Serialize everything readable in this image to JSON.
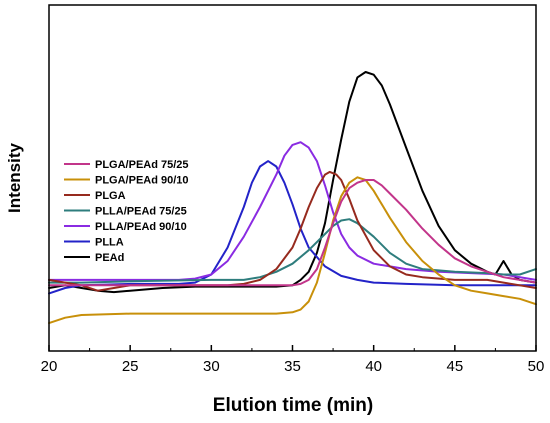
{
  "chart_data": {
    "type": "line",
    "xlabel": "Elution time (min)",
    "ylabel": "Intensity",
    "xlim": [
      20,
      50
    ],
    "ylim": [
      0,
      1
    ],
    "x_ticks": [
      "20",
      "25",
      "30",
      "35",
      "40",
      "45",
      "50"
    ],
    "grid": false,
    "legend_position": "left-center",
    "series": [
      {
        "name": "PLGA/PEAd 75/25",
        "color": "#c2358a",
        "points": [
          [
            20,
            0.11
          ],
          [
            25,
            0.11
          ],
          [
            28,
            0.11
          ],
          [
            30,
            0.11
          ],
          [
            32,
            0.11
          ],
          [
            34,
            0.11
          ],
          [
            35,
            0.11
          ],
          [
            35.5,
            0.115
          ],
          [
            36,
            0.13
          ],
          [
            36.5,
            0.17
          ],
          [
            37,
            0.25
          ],
          [
            37.5,
            0.34
          ],
          [
            38,
            0.42
          ],
          [
            38.5,
            0.47
          ],
          [
            39,
            0.49
          ],
          [
            39.5,
            0.5
          ],
          [
            40,
            0.5
          ],
          [
            40.5,
            0.48
          ],
          [
            41,
            0.45
          ],
          [
            42,
            0.39
          ],
          [
            43,
            0.32
          ],
          [
            44,
            0.26
          ],
          [
            45,
            0.21
          ],
          [
            46,
            0.18
          ],
          [
            47,
            0.16
          ],
          [
            48,
            0.14
          ],
          [
            49,
            0.13
          ],
          [
            50,
            0.12
          ]
        ]
      },
      {
        "name": "PLGA/PEAd 90/10",
        "color": "#c8900a",
        "points": [
          [
            20,
            -0.03
          ],
          [
            21,
            -0.01
          ],
          [
            22,
            0
          ],
          [
            25,
            0.005
          ],
          [
            30,
            0.005
          ],
          [
            34,
            0.005
          ],
          [
            35,
            0.01
          ],
          [
            35.5,
            0.02
          ],
          [
            36,
            0.05
          ],
          [
            36.5,
            0.12
          ],
          [
            37,
            0.23
          ],
          [
            37.5,
            0.35
          ],
          [
            38,
            0.44
          ],
          [
            38.5,
            0.49
          ],
          [
            39,
            0.51
          ],
          [
            39.5,
            0.5
          ],
          [
            40,
            0.46
          ],
          [
            41,
            0.36
          ],
          [
            42,
            0.27
          ],
          [
            43,
            0.2
          ],
          [
            44,
            0.15
          ],
          [
            45,
            0.11
          ],
          [
            46,
            0.09
          ],
          [
            47,
            0.08
          ],
          [
            48,
            0.07
          ],
          [
            49,
            0.06
          ],
          [
            50,
            0.04
          ]
        ]
      },
      {
        "name": "PLGA",
        "color": "#962a1e",
        "points": [
          [
            20,
            0.13
          ],
          [
            21,
            0.12
          ],
          [
            22,
            0.11
          ],
          [
            23,
            0.09
          ],
          [
            24,
            0.1
          ],
          [
            25,
            0.11
          ],
          [
            27,
            0.11
          ],
          [
            29,
            0.11
          ],
          [
            31,
            0.11
          ],
          [
            32,
            0.115
          ],
          [
            33,
            0.13
          ],
          [
            34,
            0.17
          ],
          [
            35,
            0.25
          ],
          [
            35.5,
            0.32
          ],
          [
            36,
            0.4
          ],
          [
            36.5,
            0.47
          ],
          [
            37,
            0.52
          ],
          [
            37.3,
            0.53
          ],
          [
            37.7,
            0.52
          ],
          [
            38,
            0.5
          ],
          [
            38.5,
            0.43
          ],
          [
            39,
            0.35
          ],
          [
            40,
            0.24
          ],
          [
            41,
            0.18
          ],
          [
            42,
            0.15
          ],
          [
            43,
            0.14
          ],
          [
            45,
            0.13
          ],
          [
            47,
            0.13
          ],
          [
            48,
            0.12
          ],
          [
            49,
            0.11
          ],
          [
            50,
            0.1
          ]
        ]
      },
      {
        "name": "PLLA/PEAd 75/25",
        "color": "#2e7d7d",
        "points": [
          [
            20,
            0.12
          ],
          [
            22,
            0.12
          ],
          [
            25,
            0.125
          ],
          [
            30,
            0.13
          ],
          [
            32,
            0.13
          ],
          [
            33,
            0.14
          ],
          [
            34,
            0.16
          ],
          [
            35,
            0.19
          ],
          [
            36,
            0.24
          ],
          [
            37,
            0.3
          ],
          [
            37.5,
            0.33
          ],
          [
            38,
            0.35
          ],
          [
            38.5,
            0.355
          ],
          [
            39,
            0.34
          ],
          [
            40,
            0.29
          ],
          [
            41,
            0.23
          ],
          [
            42,
            0.19
          ],
          [
            43,
            0.17
          ],
          [
            44,
            0.165
          ],
          [
            45,
            0.16
          ],
          [
            47,
            0.155
          ],
          [
            48,
            0.15
          ],
          [
            49,
            0.15
          ],
          [
            50,
            0.17
          ]
        ]
      },
      {
        "name": "PLLA/PEAd 90/10",
        "color": "#8a2be2",
        "points": [
          [
            20,
            0.13
          ],
          [
            25,
            0.13
          ],
          [
            28,
            0.13
          ],
          [
            29,
            0.135
          ],
          [
            30,
            0.15
          ],
          [
            31,
            0.2
          ],
          [
            32,
            0.29
          ],
          [
            33,
            0.4
          ],
          [
            34,
            0.52
          ],
          [
            34.5,
            0.59
          ],
          [
            35,
            0.63
          ],
          [
            35.5,
            0.64
          ],
          [
            36,
            0.62
          ],
          [
            36.5,
            0.57
          ],
          [
            37,
            0.48
          ],
          [
            37.5,
            0.38
          ],
          [
            38,
            0.3
          ],
          [
            38.5,
            0.25
          ],
          [
            39,
            0.22
          ],
          [
            40,
            0.19
          ],
          [
            41,
            0.18
          ],
          [
            42,
            0.17
          ],
          [
            44,
            0.16
          ],
          [
            46,
            0.155
          ],
          [
            48,
            0.15
          ],
          [
            50,
            0.13
          ]
        ]
      },
      {
        "name": "PLLA",
        "color": "#2323c8",
        "points": [
          [
            20,
            0.08
          ],
          [
            21,
            0.1
          ],
          [
            22,
            0.11
          ],
          [
            25,
            0.115
          ],
          [
            28,
            0.115
          ],
          [
            29,
            0.12
          ],
          [
            30,
            0.15
          ],
          [
            31,
            0.25
          ],
          [
            32,
            0.4
          ],
          [
            32.5,
            0.49
          ],
          [
            33,
            0.55
          ],
          [
            33.5,
            0.57
          ],
          [
            34,
            0.55
          ],
          [
            34.5,
            0.49
          ],
          [
            35,
            0.41
          ],
          [
            35.5,
            0.32
          ],
          [
            36,
            0.25
          ],
          [
            37,
            0.18
          ],
          [
            38,
            0.145
          ],
          [
            39,
            0.13
          ],
          [
            40,
            0.12
          ],
          [
            42,
            0.115
          ],
          [
            45,
            0.11
          ],
          [
            50,
            0.11
          ]
        ]
      },
      {
        "name": "PEAd",
        "color": "#000000",
        "points": [
          [
            20,
            0.1
          ],
          [
            21,
            0.11
          ],
          [
            22,
            0.1
          ],
          [
            23,
            0.09
          ],
          [
            24,
            0.085
          ],
          [
            25,
            0.09
          ],
          [
            27,
            0.1
          ],
          [
            29,
            0.105
          ],
          [
            31,
            0.105
          ],
          [
            33,
            0.105
          ],
          [
            34,
            0.105
          ],
          [
            35,
            0.11
          ],
          [
            35.5,
            0.13
          ],
          [
            36,
            0.16
          ],
          [
            36.5,
            0.23
          ],
          [
            37,
            0.34
          ],
          [
            37.5,
            0.5
          ],
          [
            38,
            0.65
          ],
          [
            38.5,
            0.79
          ],
          [
            39,
            0.88
          ],
          [
            39.5,
            0.9
          ],
          [
            40,
            0.89
          ],
          [
            40.5,
            0.85
          ],
          [
            41,
            0.78
          ],
          [
            42,
            0.62
          ],
          [
            43,
            0.46
          ],
          [
            44,
            0.33
          ],
          [
            45,
            0.24
          ],
          [
            46,
            0.19
          ],
          [
            47,
            0.16
          ],
          [
            47.5,
            0.15
          ],
          [
            48,
            0.2
          ],
          [
            48.5,
            0.15
          ],
          [
            49,
            0.13
          ],
          [
            50,
            0.12
          ]
        ]
      }
    ]
  }
}
